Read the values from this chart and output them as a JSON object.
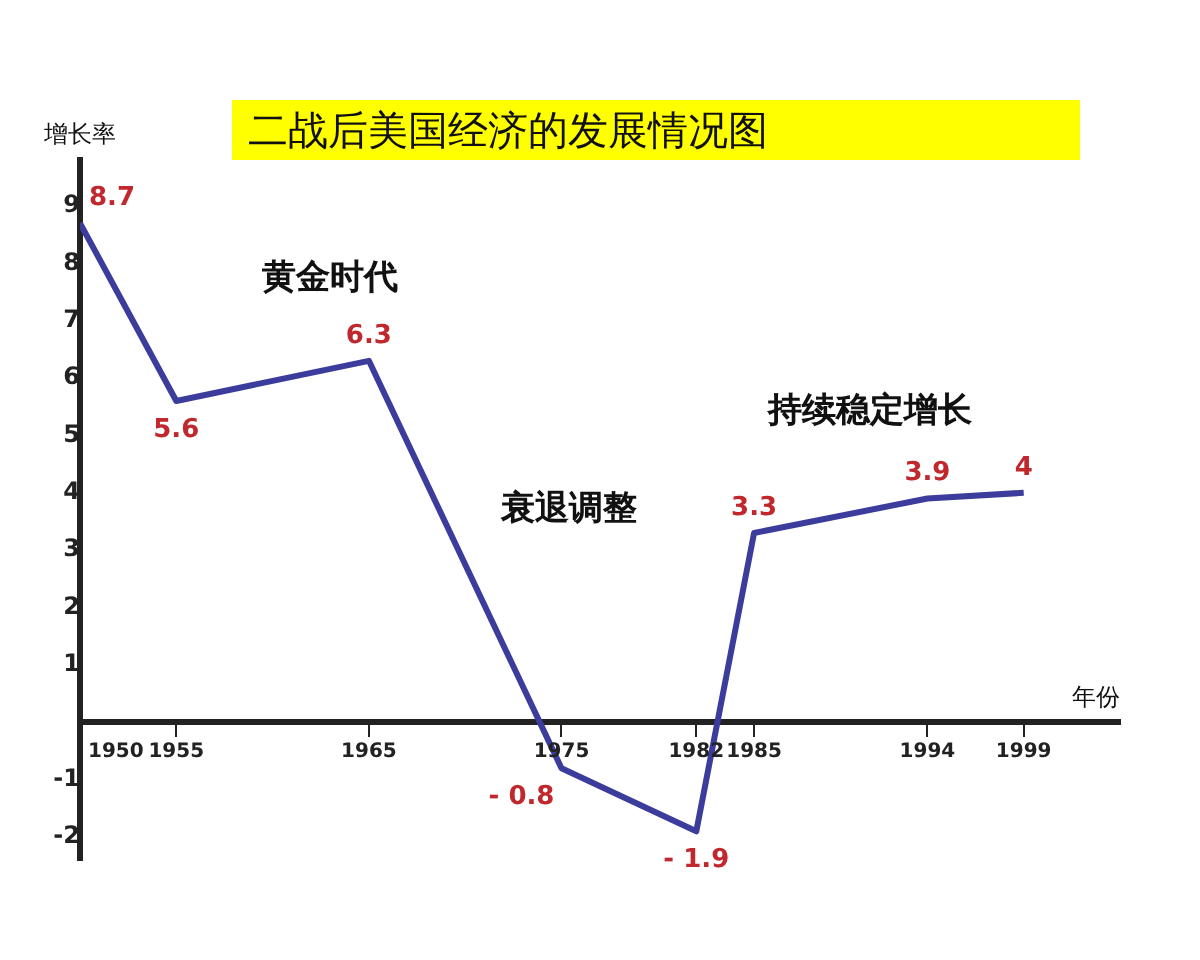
{
  "chart_data": {
    "type": "line",
    "title": "二战后美国经济的发展情况图",
    "xlabel": "年份",
    "ylabel": "增长率",
    "x": [
      1950,
      1955,
      1965,
      1975,
      1982,
      1985,
      1994,
      1999
    ],
    "series": [
      {
        "color": "#3c3c9c",
        "values": [
          8.7,
          5.6,
          6.3,
          -0.8,
          -1.9,
          3.3,
          3.9,
          4
        ],
        "value_labels": [
          "8.7",
          "5.6",
          "6.3",
          "- 0.8",
          "- 1.9",
          "3.3",
          "3.9",
          "4"
        ]
      }
    ],
    "xlim": [
      1950,
      2004
    ],
    "xticks": [
      1950,
      1955,
      1965,
      1975,
      1982,
      1985,
      1994,
      1999
    ],
    "ylim": [
      -2.4,
      9.8
    ],
    "yticks": [
      -2,
      -1,
      1,
      2,
      3,
      4,
      5,
      6,
      7,
      8,
      9
    ],
    "annotations": [
      "黄金时代",
      "衰退调整",
      "持续稳定增长"
    ],
    "marker": "none",
    "grid": false,
    "legend": false
  }
}
